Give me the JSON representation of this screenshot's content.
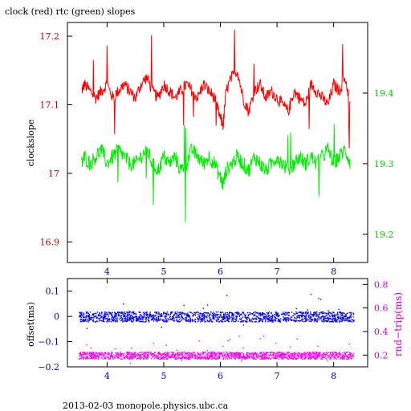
{
  "title": "clock (red) rtc (green) slopes",
  "footer": "2013-02-03  monopole.physics.ubc.ca",
  "colors": {
    "clock": "#ff0000",
    "rtc": "#00ee00",
    "offset": "#0000ff",
    "rndtrip": "#ff00ff",
    "xaxis": "#0000cc",
    "left_axis_top": "#cc0000",
    "left_axis_bottom": "#0000cc",
    "right_axis_top": "#00cc00",
    "right_axis_bottom": "#cc00cc",
    "frame": "#000000"
  },
  "chart_data": [
    {
      "type": "line",
      "panel": "top",
      "title": "clock (red) rtc (green) slopes",
      "xlabel": "",
      "ylabel": "clockslope",
      "y2label": "",
      "xlim": [
        3.3,
        8.6
      ],
      "ylim": [
        16.87,
        17.22
      ],
      "y2lim": [
        19.16,
        19.5
      ],
      "xticks": [
        4,
        5,
        6,
        7,
        8
      ],
      "yticks": [
        16.9,
        17.0,
        17.1,
        17.2
      ],
      "yticklabels": [
        "16.9",
        "17",
        "17.1",
        "17.2"
      ],
      "y2ticks": [
        19.2,
        19.3,
        19.4
      ],
      "y2ticklabels": [
        "19.2",
        "19.3",
        "19.4"
      ],
      "grid": false,
      "series": [
        {
          "axis": "left",
          "color": "#ff0000",
          "x": [
            3.55,
            3.6,
            3.7,
            3.8,
            3.9,
            4.0,
            4.1,
            4.2,
            4.3,
            4.4,
            4.5,
            4.6,
            4.7,
            4.8,
            4.9,
            5.0,
            5.1,
            5.2,
            5.3,
            5.4,
            5.5,
            5.6,
            5.7,
            5.8,
            5.9,
            6.0,
            6.05,
            6.1,
            6.2,
            6.3,
            6.4,
            6.5,
            6.6,
            6.7,
            6.8,
            6.9,
            7.0,
            7.1,
            7.2,
            7.3,
            7.4,
            7.5,
            7.6,
            7.7,
            7.8,
            7.9,
            8.0,
            8.1,
            8.2,
            8.3
          ],
          "y": [
            17.12,
            17.13,
            17.12,
            17.11,
            17.12,
            17.13,
            17.11,
            17.12,
            17.13,
            17.12,
            17.11,
            17.13,
            17.14,
            17.12,
            17.11,
            17.13,
            17.12,
            17.11,
            17.12,
            17.13,
            17.12,
            17.11,
            17.13,
            17.12,
            17.11,
            17.08,
            17.07,
            17.12,
            17.14,
            17.15,
            17.11,
            17.09,
            17.12,
            17.13,
            17.11,
            17.12,
            17.11,
            17.1,
            17.09,
            17.12,
            17.11,
            17.1,
            17.13,
            17.12,
            17.11,
            17.1,
            17.13,
            17.12,
            17.14,
            17.1
          ]
        },
        {
          "axis": "right",
          "color": "#00ee00",
          "x": [
            3.55,
            3.6,
            3.7,
            3.8,
            3.9,
            4.0,
            4.1,
            4.2,
            4.3,
            4.4,
            4.5,
            4.6,
            4.7,
            4.8,
            4.9,
            5.0,
            5.1,
            5.2,
            5.3,
            5.4,
            5.5,
            5.6,
            5.7,
            5.8,
            5.9,
            6.0,
            6.05,
            6.1,
            6.2,
            6.3,
            6.4,
            6.5,
            6.6,
            6.7,
            6.8,
            6.9,
            7.0,
            7.1,
            7.2,
            7.3,
            7.4,
            7.5,
            7.6,
            7.7,
            7.8,
            7.9,
            8.0,
            8.1,
            8.2,
            8.3
          ],
          "y": [
            19.3,
            19.31,
            19.3,
            19.31,
            19.32,
            19.3,
            19.31,
            19.32,
            19.31,
            19.3,
            19.3,
            19.31,
            19.32,
            19.3,
            19.29,
            19.31,
            19.3,
            19.31,
            19.29,
            19.3,
            19.32,
            19.31,
            19.3,
            19.31,
            19.3,
            19.28,
            19.27,
            19.29,
            19.3,
            19.31,
            19.3,
            19.29,
            19.31,
            19.3,
            19.29,
            19.3,
            19.31,
            19.3,
            19.29,
            19.3,
            19.31,
            19.3,
            19.31,
            19.3,
            19.31,
            19.32,
            19.3,
            19.31,
            19.32,
            19.3
          ]
        }
      ]
    },
    {
      "type": "scatter",
      "panel": "bottom",
      "xlabel": "",
      "ylabel": "offset(ms)",
      "y2label": "rnd−trip(ms)",
      "xlim": [
        3.3,
        8.6
      ],
      "ylim": [
        -0.2,
        0.15
      ],
      "y2lim": [
        0.1,
        0.85
      ],
      "xticks": [
        4,
        5,
        6,
        7,
        8
      ],
      "yticks": [
        -0.2,
        -0.1,
        0,
        0.1
      ],
      "yticklabels": [
        "−0.2",
        "−0.1",
        "0",
        "0.1"
      ],
      "y2ticks": [
        0.2,
        0.4,
        0.6,
        0.8
      ],
      "y2ticklabels": [
        "0.2",
        "0.4",
        "0.6",
        "0.8"
      ],
      "grid": false,
      "series": [
        {
          "axis": "left",
          "color": "#0000ff",
          "x_range": [
            3.5,
            8.35
          ],
          "center": 0.0,
          "spread": 0.02
        },
        {
          "axis": "right",
          "color": "#ff00ff",
          "x_range": [
            3.5,
            8.35
          ],
          "center": 0.2,
          "spread": 0.03
        }
      ]
    }
  ]
}
